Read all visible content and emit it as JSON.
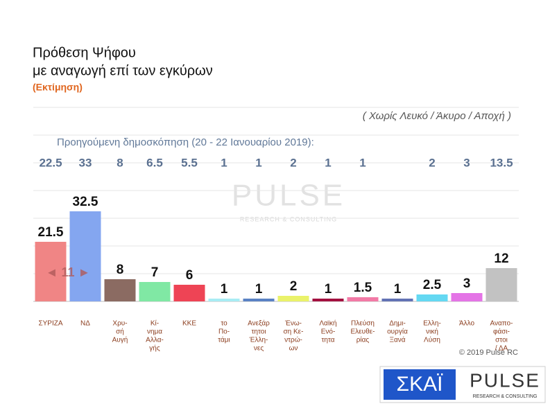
{
  "chart_data": {
    "type": "bar",
    "title_lines": [
      "Πρόθεση Ψήφου",
      "με αναγωγή επί των εγκύρων"
    ],
    "subtitle": "(Εκτίμηση)",
    "note": "( Χωρίς Λευκό / Άκυρο / Αποχή )",
    "previous_label": "Προηγούμενη δημοσκόπηση (20 - 22 Ιανουαρίου 2019):",
    "previous_values": [
      22.5,
      33,
      8,
      6.5,
      5.5,
      1,
      1,
      2,
      1,
      1,
      null,
      2,
      3,
      13.5
    ],
    "categories": [
      [
        "ΣΥΡΙΖΑ"
      ],
      [
        "ΝΔ"
      ],
      [
        "Χρυ-",
        "σή",
        "Αυγή"
      ],
      [
        "Κί-",
        "νημα",
        "Αλλα-",
        "γής"
      ],
      [
        "ΚΚΕ"
      ],
      [
        "το",
        "Πο-",
        "τάμι"
      ],
      [
        "Ανεξάρ",
        "τητοι",
        "Έλλη-",
        "νες"
      ],
      [
        "Ένω-",
        "ση Κε-",
        "ντρώ-",
        "ων"
      ],
      [
        "Λαϊκή",
        "Ενό-",
        "τητα"
      ],
      [
        "Πλεύση",
        "Ελευθε-",
        "ρίας"
      ],
      [
        "Δημι-",
        "ουργία",
        "Ξανά"
      ],
      [
        "Ελλη-",
        "νική",
        "Λύση"
      ],
      [
        "Άλλο"
      ],
      [
        "Αναπο-",
        "φάσι-",
        "στοι",
        "/ ΔΑ"
      ]
    ],
    "values": [
      21.5,
      32.5,
      8,
      7,
      6,
      1,
      1,
      2,
      1,
      1.5,
      1,
      2.5,
      3,
      12
    ],
    "colors": [
      "#f08585",
      "#84a6f0",
      "#8b6b62",
      "#80e8a4",
      "#ee4455",
      "#a8ecf4",
      "#5a82c4",
      "#eaf26a",
      "#a3103f",
      "#f27aa6",
      "#6272b4",
      "#64d8f2",
      "#e474e6",
      "#c2c2c2"
    ],
    "gap_annotation": "◄ 11 ►",
    "ylim": [
      0,
      70
    ],
    "yticks": [
      0,
      10,
      20,
      30,
      40,
      50,
      60,
      70
    ],
    "grid": true,
    "tick_labels_shown": false,
    "watermark": "PULSE",
    "watermark_sub": "RESEARCH & CONSULTING",
    "copyright": "© 2019 Pulse RC",
    "logo_left": "ΣΚΑΪ",
    "logo_right": "PULSE",
    "logo_right_sub": "RESEARCH & CONSULTING"
  }
}
